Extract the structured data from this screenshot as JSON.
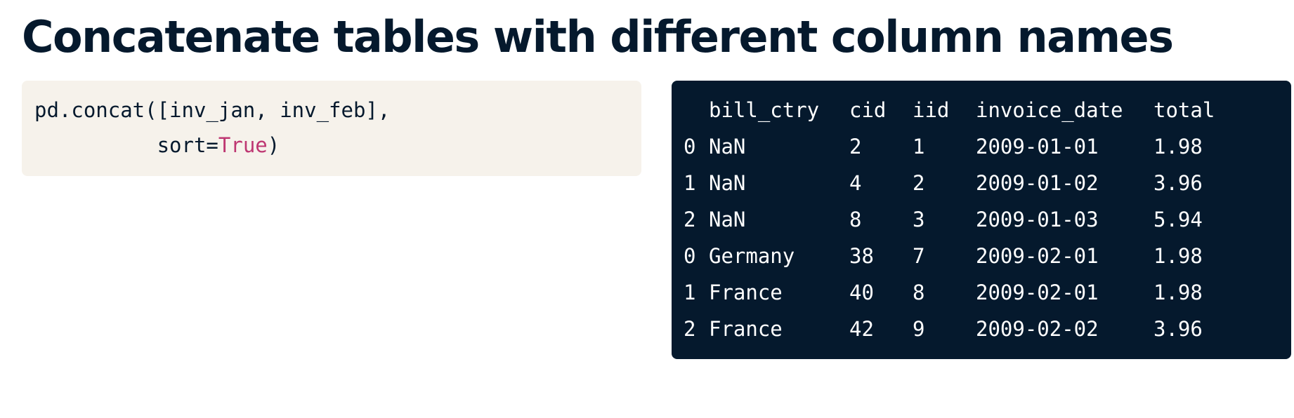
{
  "slide": {
    "title": "Concatenate tables with different column names"
  },
  "code": {
    "line1": "pd.concat([inv_jan, inv_feb],",
    "line2_prefix": "          sort=",
    "line2_keyword": "True",
    "line2_suffix": ")"
  },
  "output": {
    "columns": [
      "",
      "bill_ctry",
      "cid",
      "iid",
      "invoice_date",
      "total"
    ],
    "rows": [
      [
        "0",
        "NaN",
        "2",
        "1",
        "2009-01-01",
        "1.98"
      ],
      [
        "1",
        "NaN",
        "4",
        "2",
        "2009-01-02",
        "3.96"
      ],
      [
        "2",
        "NaN",
        "8",
        "3",
        "2009-01-03",
        "5.94"
      ],
      [
        "0",
        "Germany",
        "38",
        "7",
        "2009-02-01",
        "1.98"
      ],
      [
        "1",
        "France",
        "40",
        "8",
        "2009-02-01",
        "1.98"
      ],
      [
        "2",
        "France",
        "42",
        "9",
        "2009-02-02",
        "3.96"
      ]
    ]
  },
  "colors": {
    "title": "#05192d",
    "code_bg": "#f6f2eb",
    "output_bg": "#05192d",
    "keyword": "#be3772"
  }
}
